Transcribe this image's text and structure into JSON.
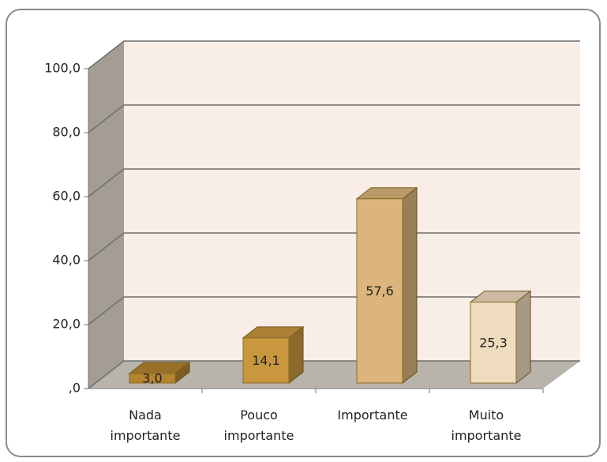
{
  "chart_data": {
    "type": "bar3d",
    "categories": [
      "Nada importante",
      "Pouco importante",
      "Importante",
      "Muito importante"
    ],
    "values": [
      3.0,
      14.1,
      57.6,
      25.3
    ],
    "value_labels": [
      "3,0",
      "14,1",
      "57,6",
      "25,3"
    ],
    "colors": [
      "#b4842f",
      "#c8973e",
      "#dbb57c",
      "#efdbbd"
    ],
    "ylim": [
      0,
      100
    ],
    "yticks": [
      {
        "value": 0,
        "label": ",0"
      },
      {
        "value": 20,
        "label": "20,0"
      },
      {
        "value": 40,
        "label": "40,0"
      },
      {
        "value": 60,
        "label": "60,0"
      },
      {
        "value": 80,
        "label": "80,0"
      },
      {
        "value": 100,
        "label": "100,0"
      }
    ],
    "grid": true
  }
}
